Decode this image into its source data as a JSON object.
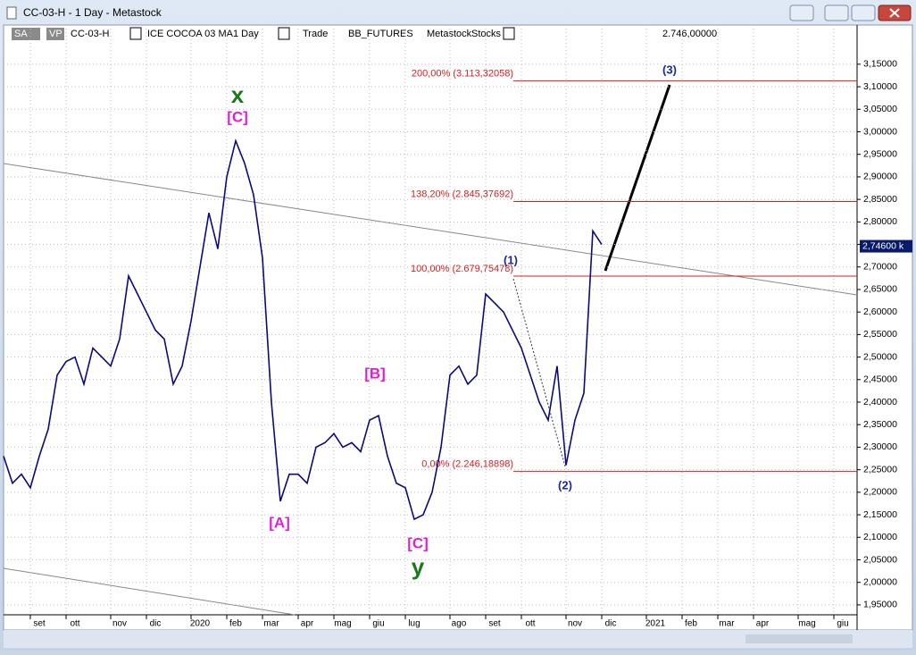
{
  "window": {
    "title": "CC-03-H - 1 Day - Metastock"
  },
  "toolbar": [
    "SA",
    "VP",
    "CC-03-H",
    "ICE COCOA 03 MA",
    "1 Day",
    "Trade",
    "BB_FUTURES",
    "Metastock",
    "Stocks"
  ],
  "chart_data": {
    "type": "line",
    "color": "#0a0a7a",
    "header_value": {
      "value": 2.746,
      "label": "2.746,00000"
    },
    "last_price": {
      "value": 2.746,
      "label": "2,74600 k"
    },
    "categories": [
      null,
      null,
      null,
      null,
      "set",
      null,
      null,
      null,
      "ott",
      null,
      null,
      null,
      null,
      "nov",
      null,
      null,
      null,
      "dic",
      null,
      null,
      null,
      null,
      "2020",
      null,
      null,
      null,
      "feb",
      null,
      null,
      null,
      "mar",
      null,
      null,
      null,
      "apr",
      null,
      null,
      null,
      "mag",
      null,
      null,
      null,
      "giu",
      null,
      null,
      null,
      "lug",
      null,
      null,
      null,
      null,
      "ago",
      null,
      null,
      null,
      "set",
      null,
      null,
      null,
      "ott",
      null,
      null,
      null,
      null,
      "nov",
      null,
      null,
      null,
      "dic",
      null,
      null,
      null,
      null,
      "2021",
      null,
      null,
      null,
      "feb",
      null,
      null,
      null,
      "mar",
      null,
      null,
      null,
      "apr",
      null,
      null,
      null,
      null,
      "mag",
      null,
      null,
      null,
      "giu",
      null
    ],
    "values": [
      2.28,
      2.22,
      2.24,
      2.21,
      2.28,
      2.34,
      2.46,
      2.49,
      2.5,
      2.44,
      2.52,
      2.5,
      2.48,
      2.54,
      2.68,
      2.64,
      2.6,
      2.56,
      2.54,
      2.44,
      2.48,
      2.58,
      2.7,
      2.82,
      2.74,
      2.9,
      2.98,
      2.93,
      2.86,
      2.72,
      2.4,
      2.18,
      2.24,
      2.24,
      2.22,
      2.3,
      2.31,
      2.33,
      2.3,
      2.31,
      2.29,
      2.36,
      2.37,
      2.28,
      2.22,
      2.21,
      2.14,
      2.15,
      2.2,
      2.3,
      2.46,
      2.48,
      2.44,
      2.46,
      2.64,
      2.62,
      2.6,
      2.56,
      2.52,
      2.46,
      2.4,
      2.36,
      2.48,
      2.26,
      2.36,
      2.42,
      2.78,
      2.75,
      null,
      null,
      null,
      null,
      null,
      null,
      null,
      null,
      null,
      null,
      null,
      null,
      null,
      null,
      null,
      null,
      null,
      null,
      null,
      null,
      null,
      null,
      null,
      null,
      null,
      null,
      null,
      null
    ],
    "ylim": [
      1.928,
      3.237
    ],
    "yticks": [
      {
        "value": 1.95,
        "label": "1,95000"
      },
      {
        "value": 2,
        "label": "2,00000"
      },
      {
        "value": 2.05,
        "label": "2,05000"
      },
      {
        "value": 2.1,
        "label": "2,10000"
      },
      {
        "value": 2.15,
        "label": "2,15000"
      },
      {
        "value": 2.2,
        "label": "2,20000"
      },
      {
        "value": 2.25,
        "label": "2,25000"
      },
      {
        "value": 2.3,
        "label": "2,30000"
      },
      {
        "value": 2.35,
        "label": "2,35000"
      },
      {
        "value": 2.4,
        "label": "2,40000"
      },
      {
        "value": 2.45,
        "label": "2,45000"
      },
      {
        "value": 2.5,
        "label": "2,50000"
      },
      {
        "value": 2.55,
        "label": "2,55000"
      },
      {
        "value": 2.6,
        "label": "2,60000"
      },
      {
        "value": 2.65,
        "label": "2,65000"
      },
      {
        "value": 2.7,
        "label": "2,70000"
      },
      {
        "value": 2.75,
        "label": "2,75000"
      },
      {
        "value": 2.8,
        "label": "2,80000"
      },
      {
        "value": 2.85,
        "label": "2,85000"
      },
      {
        "value": 2.9,
        "label": "2,90000"
      },
      {
        "value": 2.95,
        "label": "2,95000"
      },
      {
        "value": 3,
        "label": "3,00000"
      },
      {
        "value": 3.05,
        "label": "3,05000"
      },
      {
        "value": 3.1,
        "label": "3,10000"
      },
      {
        "value": 3.15,
        "label": "3,15000"
      }
    ],
    "grid": true,
    "fib_levels": [
      {
        "value": 3.11332058,
        "label": "200,00% (3.113,32058)"
      },
      {
        "value": 2.84537692,
        "label": "138,20% (2.845,37692)"
      },
      {
        "value": 2.67975478,
        "label": "100,00% (2.679,75478)"
      },
      {
        "value": 2.24618898,
        "label": "0,00% (2.246,18898)"
      }
    ],
    "fib_color": "#d42020",
    "wave_labels": [
      {
        "text": "x",
        "color": "#1a7a1a"
      },
      {
        "text": "[C]",
        "color": "#e020d0"
      },
      {
        "text": "[A]",
        "color": "#e020d0"
      },
      {
        "text": "[B]",
        "color": "#e020d0"
      },
      {
        "text": "[C]",
        "color": "#e020d0"
      },
      {
        "text": "y",
        "color": "#1a7a1a"
      },
      {
        "text": "(1)",
        "color": "#1a2a9a"
      },
      {
        "text": "(2)",
        "color": "#1a2a9a"
      },
      {
        "text": "(3)",
        "color": "#1a2a9a"
      }
    ]
  }
}
